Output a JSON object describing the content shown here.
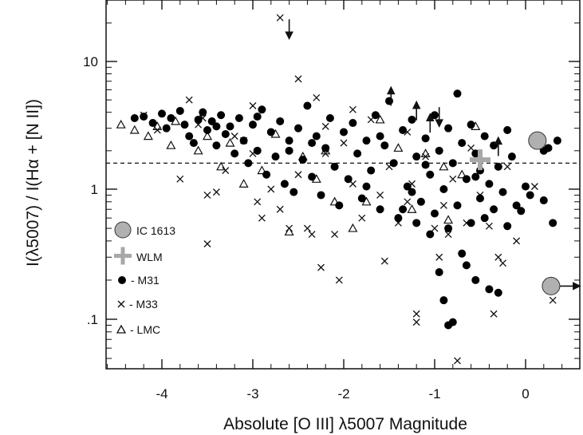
{
  "chart_data": {
    "type": "scatter",
    "xlabel": "Absolute [O III] λ5007 Magnitude",
    "ylabel": "I(λ5007) / I(Hα + [N II])",
    "xlim": [
      -4.8,
      0.6
    ],
    "ylim": [
      0.04,
      30
    ],
    "yscale": "log",
    "x_ticks": [
      -4,
      -3,
      -2,
      -1,
      0
    ],
    "x_tick_labels": [
      "-4",
      "-3",
      "-2",
      "-1",
      "0"
    ],
    "y_ticks": [
      0.1,
      1,
      10
    ],
    "y_tick_labels": [
      ".1",
      "1",
      "10"
    ],
    "reference_line": {
      "y": 1.6,
      "style": "dashed"
    },
    "legend": [
      {
        "label": "IC 1613",
        "marker": "large-gray-circle"
      },
      {
        "label": "WLM",
        "marker": "gray-plus"
      },
      {
        "label": "- M31",
        "marker": "filled-circle"
      },
      {
        "label": "- M33",
        "marker": "cross"
      },
      {
        "label": "- LMC",
        "marker": "open-triangle"
      }
    ],
    "colors": {
      "ic1613": "#b0b0b0",
      "wlm": "#a8a8a8",
      "m31": "#000000",
      "m33": "#111111",
      "lmc": "#111111"
    },
    "series": [
      {
        "name": "IC 1613",
        "points": [
          [
            0.13,
            2.4
          ],
          [
            0.28,
            0.18
          ]
        ]
      },
      {
        "name": "WLM",
        "points": [
          [
            -0.5,
            1.7
          ]
        ]
      },
      {
        "name": "- M31",
        "points": [
          [
            -4.2,
            3.7
          ],
          [
            -4.1,
            3.3
          ],
          [
            -4.0,
            3.9
          ],
          [
            -3.95,
            3.0
          ],
          [
            -3.9,
            3.6
          ],
          [
            -3.8,
            4.1
          ],
          [
            -3.75,
            3.2
          ],
          [
            -3.7,
            2.6
          ],
          [
            -3.6,
            3.5
          ],
          [
            -3.55,
            4.0
          ],
          [
            -3.5,
            2.9
          ],
          [
            -3.45,
            3.4
          ],
          [
            -3.4,
            2.2
          ],
          [
            -3.35,
            3.8
          ],
          [
            -3.3,
            2.7
          ],
          [
            -3.25,
            3.1
          ],
          [
            -3.2,
            1.9
          ],
          [
            -3.15,
            3.6
          ],
          [
            -3.1,
            2.4
          ],
          [
            -3.05,
            1.6
          ],
          [
            -3.0,
            3.2
          ],
          [
            -2.95,
            2.0
          ],
          [
            -2.9,
            4.2
          ],
          [
            -2.85,
            1.3
          ],
          [
            -2.8,
            2.8
          ],
          [
            -2.75,
            1.8
          ],
          [
            -2.7,
            3.4
          ],
          [
            -2.65,
            1.1
          ],
          [
            -2.6,
            2.4
          ],
          [
            -2.55,
            0.95
          ],
          [
            -2.5,
            3.0
          ],
          [
            -2.45,
            1.7
          ],
          [
            -2.4,
            4.5
          ],
          [
            -2.35,
            1.25
          ],
          [
            -2.3,
            2.6
          ],
          [
            -2.25,
            0.9
          ],
          [
            -2.2,
            2.1
          ],
          [
            -2.15,
            3.6
          ],
          [
            -2.1,
            1.5
          ],
          [
            -2.05,
            0.75
          ],
          [
            -2.0,
            2.8
          ],
          [
            -1.95,
            1.2
          ],
          [
            -1.9,
            3.3
          ],
          [
            -1.85,
            1.9
          ],
          [
            -1.8,
            0.85
          ],
          [
            -1.75,
            2.4
          ],
          [
            -1.7,
            1.4
          ],
          [
            -1.65,
            3.8
          ],
          [
            -1.6,
            0.7
          ],
          [
            -1.55,
            2.2
          ],
          [
            -1.5,
            4.9
          ],
          [
            -1.45,
            1.6
          ],
          [
            -1.4,
            0.6
          ],
          [
            -1.35,
            2.9
          ],
          [
            -1.3,
            1.05
          ],
          [
            -1.25,
            3.5
          ],
          [
            -1.2,
            0.55
          ],
          [
            -1.2,
            1.8
          ],
          [
            -1.15,
            0.8
          ],
          [
            -1.1,
            2.5
          ],
          [
            -1.05,
            0.45
          ],
          [
            -1.05,
            1.3
          ],
          [
            -1.0,
            3.8
          ],
          [
            -1.0,
            0.65
          ],
          [
            -0.95,
            2.0
          ],
          [
            -0.95,
            0.23
          ],
          [
            -0.9,
            1.0
          ],
          [
            -0.9,
            0.14
          ],
          [
            -0.85,
            3.0
          ],
          [
            -0.85,
            0.5
          ],
          [
            -0.8,
            1.6
          ],
          [
            -0.8,
            0.095
          ],
          [
            -0.75,
            5.6
          ],
          [
            -0.75,
            0.75
          ],
          [
            -0.7,
            2.3
          ],
          [
            -0.7,
            0.32
          ],
          [
            -0.65,
            1.2
          ],
          [
            -0.6,
            0.55
          ],
          [
            -0.6,
            3.2
          ],
          [
            -0.55,
            1.9
          ],
          [
            -0.55,
            0.2
          ],
          [
            -0.5,
            0.85
          ],
          [
            -0.5,
            1.4
          ],
          [
            -0.45,
            2.6
          ],
          [
            -0.45,
            0.6
          ],
          [
            -0.4,
            1.1
          ],
          [
            -0.4,
            0.17
          ],
          [
            -0.35,
            0.7
          ],
          [
            -0.35,
            2.2
          ],
          [
            -0.3,
            1.5
          ],
          [
            -0.3,
            0.16
          ],
          [
            -0.25,
            0.95
          ],
          [
            -0.2,
            0.52
          ],
          [
            -0.15,
            1.8
          ],
          [
            -0.1,
            0.75
          ],
          [
            -0.05,
            0.68
          ],
          [
            0.0,
            1.05
          ],
          [
            0.05,
            0.9
          ],
          [
            -4.3,
            3.6
          ],
          [
            -3.65,
            2.3
          ],
          [
            -2.95,
            3.7
          ],
          [
            -2.35,
            2.3
          ],
          [
            -1.75,
            1.05
          ],
          [
            -1.35,
            0.7
          ],
          [
            -0.85,
            0.09
          ],
          [
            -0.65,
            0.26
          ],
          [
            0.2,
            2.0
          ],
          [
            0.2,
            0.82
          ],
          [
            0.25,
            2.1
          ],
          [
            0.3,
            0.55
          ],
          [
            0.35,
            2.4
          ],
          [
            -1.6,
            2.6
          ],
          [
            -1.1,
            1.55
          ],
          [
            -2.6,
            2.0
          ],
          [
            -3.4,
            3.1
          ],
          [
            -0.2,
            2.9
          ],
          [
            -0.55,
            1.25
          ],
          [
            -1.25,
            0.95
          ]
        ]
      },
      {
        "name": "- M33",
        "points": [
          [
            -3.7,
            5.0
          ],
          [
            -3.6,
            3.2
          ],
          [
            -3.8,
            1.2
          ],
          [
            -3.5,
            0.9
          ],
          [
            -3.5,
            0.38
          ],
          [
            -3.4,
            0.95
          ],
          [
            -3.3,
            1.4
          ],
          [
            -3.2,
            2.6
          ],
          [
            -3.1,
            2.4
          ],
          [
            -3.0,
            1.9
          ],
          [
            -2.95,
            0.8
          ],
          [
            -2.9,
            0.6
          ],
          [
            -2.8,
            1.0
          ],
          [
            -2.7,
            0.7
          ],
          [
            -2.6,
            0.5
          ],
          [
            -2.5,
            7.3
          ],
          [
            -2.5,
            1.3
          ],
          [
            -2.4,
            0.5
          ],
          [
            -2.35,
            0.45
          ],
          [
            -2.3,
            5.2
          ],
          [
            -2.25,
            0.25
          ],
          [
            -2.2,
            1.9
          ],
          [
            -2.1,
            0.45
          ],
          [
            -2.05,
            0.2
          ],
          [
            -2.0,
            2.3
          ],
          [
            -1.9,
            1.1
          ],
          [
            -1.8,
            0.6
          ],
          [
            -1.7,
            3.5
          ],
          [
            -1.6,
            0.9
          ],
          [
            -1.55,
            0.28
          ],
          [
            -1.5,
            1.5
          ],
          [
            -1.4,
            0.55
          ],
          [
            -1.3,
            0.8
          ],
          [
            -1.25,
            1.1
          ],
          [
            -1.2,
            0.11
          ],
          [
            -1.2,
            0.095
          ],
          [
            -1.1,
            1.8
          ],
          [
            -1.0,
            0.5
          ],
          [
            -0.95,
            0.3
          ],
          [
            -0.9,
            0.75
          ],
          [
            -0.85,
            0.45
          ],
          [
            -0.8,
            1.2
          ],
          [
            -0.75,
            0.048
          ],
          [
            -0.65,
            0.55
          ],
          [
            -0.6,
            2.1
          ],
          [
            -0.5,
            0.9
          ],
          [
            -0.4,
            0.52
          ],
          [
            -0.35,
            0.11
          ],
          [
            -0.3,
            0.3
          ],
          [
            -0.25,
            0.27
          ],
          [
            -0.2,
            1.5
          ],
          [
            -0.1,
            0.4
          ],
          [
            0.1,
            1.05
          ],
          [
            0.3,
            0.14
          ],
          [
            -2.7,
            22.0
          ],
          [
            -3.0,
            4.5
          ],
          [
            -1.9,
            4.2
          ],
          [
            -1.3,
            2.8
          ],
          [
            -4.2,
            3.8
          ],
          [
            -4.05,
            2.9
          ],
          [
            -3.55,
            3.6
          ],
          [
            -2.2,
            3.1
          ]
        ]
      },
      {
        "name": "- LMC",
        "points": [
          [
            -4.45,
            3.2
          ],
          [
            -4.3,
            2.9
          ],
          [
            -4.15,
            2.6
          ],
          [
            -4.05,
            3.1
          ],
          [
            -3.9,
            2.2
          ],
          [
            -3.85,
            3.4
          ],
          [
            -3.6,
            2.0
          ],
          [
            -3.5,
            2.6
          ],
          [
            -3.35,
            1.5
          ],
          [
            -3.25,
            2.3
          ],
          [
            -3.1,
            1.1
          ],
          [
            -2.9,
            1.4
          ],
          [
            -2.75,
            2.7
          ],
          [
            -2.6,
            0.47
          ],
          [
            -2.45,
            1.8
          ],
          [
            -2.3,
            1.2
          ],
          [
            -2.2,
            2.0
          ],
          [
            -2.1,
            0.8
          ],
          [
            -1.9,
            0.5
          ],
          [
            -1.75,
            0.8
          ],
          [
            -1.6,
            3.5
          ],
          [
            -1.4,
            2.1
          ],
          [
            -1.25,
            0.7
          ],
          [
            -1.1,
            1.9
          ],
          [
            -0.9,
            1.5
          ],
          [
            -0.85,
            0.58
          ],
          [
            -0.7,
            1.3
          ],
          [
            -0.55,
            3.1
          ]
        ]
      }
    ],
    "limit_arrows": [
      {
        "x": -2.6,
        "y": 18.5,
        "direction": "down"
      },
      {
        "x": -1.48,
        "y": 5.2,
        "direction": "up"
      },
      {
        "x": -1.2,
        "y": 4.0,
        "direction": "up"
      },
      {
        "x": -1.05,
        "y": 3.2,
        "direction": "up"
      },
      {
        "x": -0.95,
        "y": 3.8,
        "direction": "down"
      },
      {
        "x": -0.3,
        "y": 2.1,
        "direction": "up"
      },
      {
        "x": 0.28,
        "y": 0.18,
        "direction": "right"
      }
    ]
  }
}
